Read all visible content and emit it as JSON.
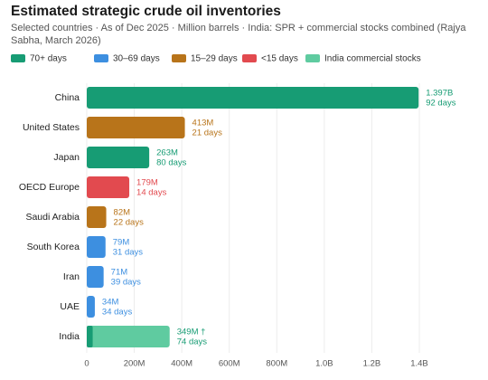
{
  "chart_data": {
    "type": "bar",
    "orientation": "horizontal",
    "title": "Estimated strategic crude oil inventories",
    "subtitle": "Selected countries · As of Dec 2025 · Million barrels · India: SPR + commercial stocks combined (Rajya Sabha, March 2026)",
    "legend": [
      {
        "name": "70+ days",
        "color": "#179c74"
      },
      {
        "name": "30–69 days",
        "color": "#3d8fe0"
      },
      {
        "name": "15–29 days",
        "color": "#b8741a"
      },
      {
        "name": "<15 days",
        "color": "#e24a4f"
      },
      {
        "name": "India commercial stocks",
        "color": "#5fcba0"
      }
    ],
    "categories": [
      "China",
      "United States",
      "Japan",
      "OECD Europe",
      "Saudi Arabia",
      "South Korea",
      "Iran",
      "UAE",
      "India"
    ],
    "values": [
      1397,
      413,
      263,
      179,
      82,
      79,
      71,
      34,
      349
    ],
    "value_labels": [
      "1.397B",
      "413M",
      "263M",
      "179M",
      "82M",
      "79M",
      "71M",
      "34M",
      "349M †"
    ],
    "days_labels": [
      "92 days",
      "21 days",
      "80 days",
      "14 days",
      "22 days",
      "31 days",
      "39 days",
      "34 days",
      "74 days"
    ],
    "colors": [
      "#179c74",
      "#b8741a",
      "#179c74",
      "#e24a4f",
      "#b8741a",
      "#3d8fe0",
      "#3d8fe0",
      "#3d8fe0",
      "#5fcba0"
    ],
    "india_spr": {
      "category": "India",
      "value": 25,
      "color": "#179c74"
    },
    "xlim": [
      0,
      1400
    ],
    "xticks": [
      0,
      {
        "value": 200,
        "label": "200M"
      },
      {
        "value": 400,
        "label": "400M"
      },
      {
        "value": 600,
        "label": "600M"
      },
      {
        "value": 800,
        "label": "800M"
      },
      {
        "value": 1000,
        "label": "1.0B"
      },
      {
        "value": 1200,
        "label": "1.2B"
      },
      {
        "value": 1400,
        "label": "1.4B"
      }
    ],
    "grid": true
  }
}
